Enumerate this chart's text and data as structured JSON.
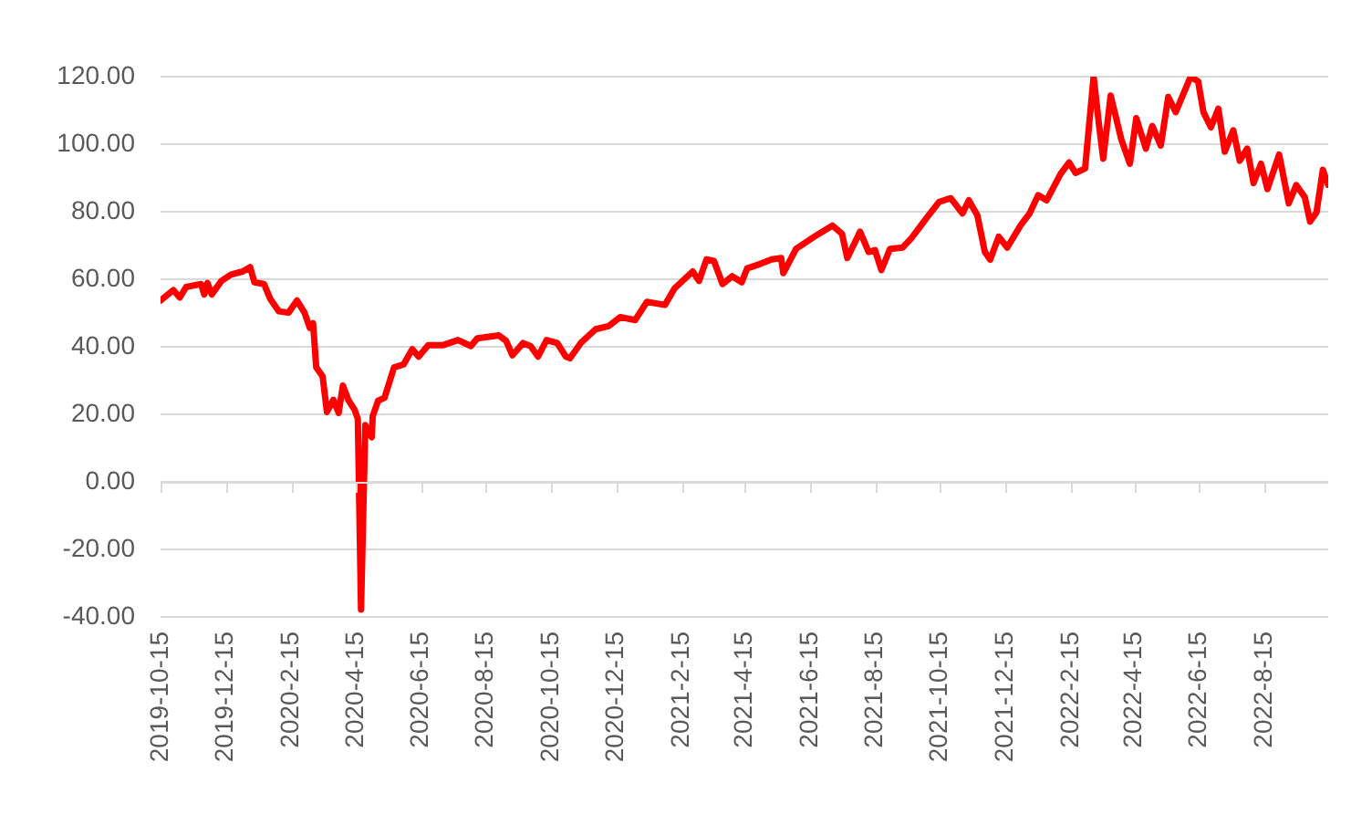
{
  "chart_data": {
    "type": "line",
    "grid": "y",
    "xlim": [
      "2019-10-15",
      "2022-10-14"
    ],
    "xticks": [
      "2019-10-15",
      "2019-12-15",
      {
        "value": "2020-02-15",
        "label": "2020-2-15"
      },
      {
        "value": "2020-04-15",
        "label": "2020-4-15"
      },
      {
        "value": "2020-06-15",
        "label": "2020-6-15"
      },
      {
        "value": "2020-08-15",
        "label": "2020-8-15"
      },
      "2020-10-15",
      "2020-12-15",
      {
        "value": "2021-02-15",
        "label": "2021-2-15"
      },
      {
        "value": "2021-04-15",
        "label": "2021-4-15"
      },
      {
        "value": "2021-06-15",
        "label": "2021-6-15"
      },
      {
        "value": "2021-08-15",
        "label": "2021-8-15"
      },
      "2021-10-15",
      "2021-12-15",
      {
        "value": "2022-02-15",
        "label": "2022-2-15"
      },
      {
        "value": "2022-04-15",
        "label": "2022-4-15"
      },
      {
        "value": "2022-06-15",
        "label": "2022-6-15"
      },
      {
        "value": "2022-08-15",
        "label": "2022-8-15"
      }
    ],
    "ylim": [
      -40,
      120
    ],
    "yticks": [
      {
        "value": -40,
        "label": "-40.00"
      },
      {
        "value": -20,
        "label": "-20.00"
      },
      {
        "value": 0,
        "label": "0.00"
      },
      {
        "value": 20,
        "label": "20.00"
      },
      {
        "value": 40,
        "label": "40.00"
      },
      {
        "value": 60,
        "label": "60.00"
      },
      {
        "value": 80,
        "label": "80.00"
      },
      {
        "value": 100,
        "label": "100.00"
      },
      {
        "value": 120,
        "label": "120.00"
      }
    ],
    "x": [
      "2019-10-15",
      "2019-10-27",
      "2019-11-02",
      "2019-11-08",
      "2019-11-22",
      "2019-11-25",
      "2019-11-28",
      "2019-12-02",
      "2019-12-11",
      "2019-12-20",
      "2019-12-31",
      "2020-01-07",
      "2020-01-11",
      "2020-01-20",
      "2020-01-26",
      "2020-02-03",
      "2020-02-12",
      "2020-02-20",
      "2020-02-27",
      "2020-03-03",
      "2020-03-06",
      "2020-03-09",
      "2020-03-15",
      "2020-03-19",
      "2020-03-25",
      "2020-03-30",
      "2020-04-03",
      "2020-04-08",
      "2020-04-14",
      "2020-04-17",
      "2020-04-20",
      "2020-04-24",
      "2020-04-30",
      "2020-05-01",
      "2020-05-06",
      "2020-05-12",
      "2020-05-21",
      "2020-05-30",
      "2020-06-07",
      "2020-06-13",
      "2020-06-22",
      "2020-07-06",
      "2020-07-20",
      "2020-08-01",
      "2020-08-07",
      "2020-08-27",
      "2020-09-03",
      "2020-09-09",
      "2020-09-19",
      "2020-09-26",
      "2020-10-03",
      "2020-10-11",
      "2020-10-21",
      "2020-10-29",
      "2020-11-02",
      "2020-11-12",
      "2020-11-26",
      "2020-12-08",
      "2020-12-19",
      "2021-01-02",
      "2021-01-13",
      "2021-01-30",
      "2021-02-08",
      "2021-02-25",
      "2021-03-03",
      "2021-03-10",
      "2021-03-17",
      "2021-03-25",
      "2021-04-03",
      "2021-04-12",
      "2021-04-17",
      "2021-04-29",
      "2021-05-10",
      "2021-05-19",
      "2021-05-21",
      "2021-06-02",
      "2021-06-19",
      "2021-07-06",
      "2021-07-15",
      "2021-07-20",
      "2021-08-01",
      "2021-08-09",
      "2021-08-15",
      "2021-08-21",
      "2021-08-29",
      "2021-09-10",
      "2021-09-18",
      "2021-10-02",
      "2021-10-14",
      "2021-10-25",
      "2021-11-05",
      "2021-11-11",
      "2021-11-19",
      "2021-11-26",
      "2021-12-01",
      "2021-12-09",
      "2021-12-17",
      "2021-12-30",
      "2022-01-07",
      "2022-01-15",
      "2022-01-23",
      "2022-02-05",
      "2022-02-13",
      "2022-02-19",
      "2022-02-28",
      "2022-03-08",
      "2022-03-13",
      "2022-03-17",
      "2022-03-24",
      "2022-04-03",
      "2022-04-11",
      "2022-04-17",
      "2022-04-26",
      "2022-05-02",
      "2022-05-10",
      "2022-05-17",
      "2022-05-24",
      "2022-06-07",
      "2022-06-14",
      "2022-06-19",
      "2022-06-26",
      "2022-07-03",
      "2022-07-09",
      "2022-07-17",
      "2022-07-23",
      "2022-07-30",
      "2022-08-05",
      "2022-08-12",
      "2022-08-18",
      "2022-08-29",
      "2022-09-07",
      "2022-09-14",
      "2022-09-22",
      "2022-09-27",
      "2022-10-03",
      "2022-10-09",
      "2022-10-14"
    ],
    "series": [
      {
        "color": "#ff0000",
        "values": [
          53.7,
          56.8,
          54.6,
          57.7,
          58.6,
          55.5,
          58.9,
          55.5,
          59.5,
          61.4,
          62.3,
          63.6,
          59.1,
          58.6,
          54.1,
          50.5,
          50.1,
          53.7,
          50.1,
          45.6,
          47,
          33.9,
          31.2,
          20.7,
          24.3,
          20.4,
          28.5,
          24.3,
          21.3,
          18.6,
          -37.8,
          16.8,
          13.2,
          19.5,
          24,
          24.9,
          33.9,
          34.8,
          39.3,
          37.1,
          40.5,
          40.5,
          42,
          40.2,
          42.5,
          43.4,
          41.8,
          37.5,
          41.1,
          40.2,
          37.1,
          42,
          41.1,
          37.1,
          36.6,
          41.1,
          45.2,
          46.1,
          48.8,
          47.9,
          53.3,
          52.4,
          57.3,
          62.3,
          59.5,
          65.9,
          65.4,
          58.6,
          60.9,
          59.1,
          63.2,
          64.5,
          65.9,
          66.3,
          61.8,
          69,
          72.6,
          75.9,
          73.5,
          66.3,
          74.1,
          68.1,
          68.6,
          62.7,
          69,
          69.4,
          72.1,
          78,
          82.9,
          84,
          79.5,
          83.4,
          78.9,
          68.1,
          65.8,
          72.6,
          69.4,
          76.2,
          79.5,
          84.9,
          83.4,
          91.2,
          94.6,
          91.5,
          92.8,
          120,
          105.9,
          95.7,
          114.4,
          101.4,
          94.2,
          107.7,
          98.7,
          105.4,
          99.6,
          114,
          109.5,
          120,
          118.6,
          109.5,
          105,
          110.5,
          97.8,
          104.1,
          95.1,
          98.7,
          88.5,
          94.2,
          86.7,
          96.9,
          82.5,
          87.9,
          84.3,
          77.1,
          79.8,
          92.4,
          87.9
        ]
      }
    ]
  }
}
